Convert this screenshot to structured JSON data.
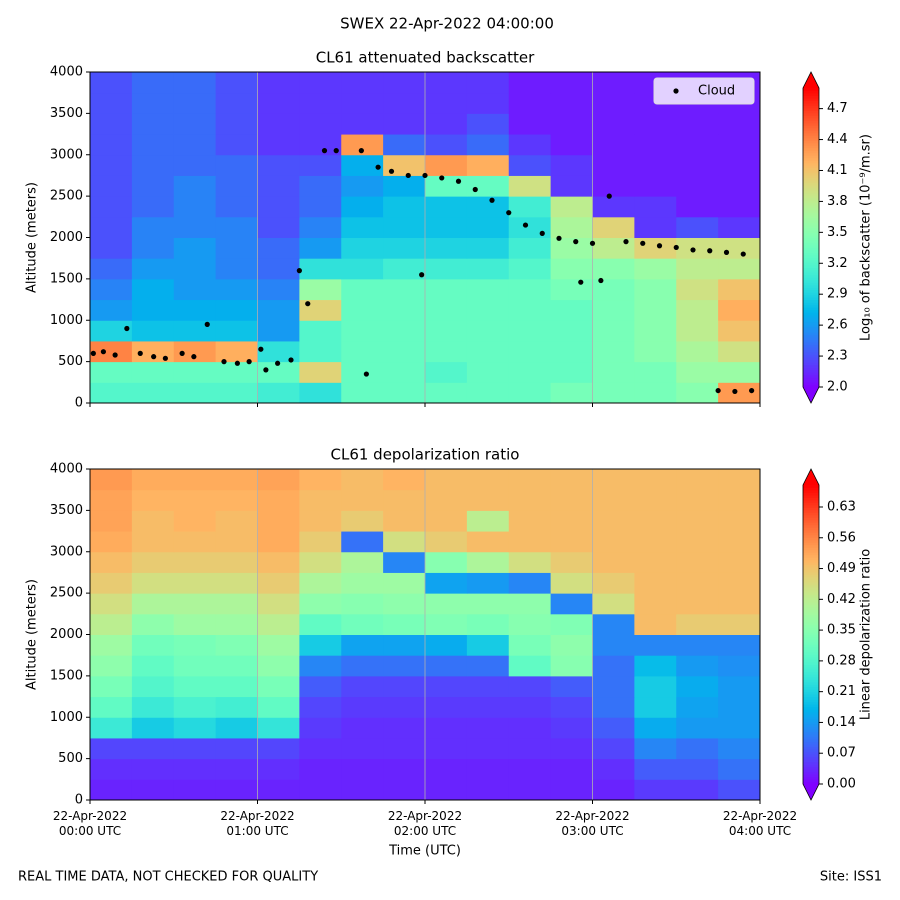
{
  "suptitle": "SWEX 22-Apr-2022 04:00:00",
  "footer_left": "REAL TIME DATA, NOT CHECKED FOR QUALITY",
  "footer_right": "Site: ISS1",
  "chart_data": [
    {
      "type": "heatmap",
      "title": "CL61 attenuated backscatter",
      "ylabel": "Altitude (meters)",
      "colormap": "rainbow",
      "clim": [
        2.0,
        4.9
      ],
      "colorbar_label": "Log₁₀ of backscatter (10⁻⁹/m.sr)",
      "colorbar_ticks": [
        {
          "value": 2.0,
          "label": "2.0"
        },
        {
          "value": 2.3,
          "label": "2.3"
        },
        {
          "value": 2.6,
          "label": "2.6"
        },
        {
          "value": 2.9,
          "label": "2.9"
        },
        {
          "value": 3.2,
          "label": "3.2"
        },
        {
          "value": 3.5,
          "label": "3.5"
        },
        {
          "value": 3.8,
          "label": "3.8"
        },
        {
          "value": 4.1,
          "label": "4.1"
        },
        {
          "value": 4.4,
          "label": "4.4"
        },
        {
          "value": 4.7,
          "label": "4.7"
        }
      ],
      "xlim": [
        0,
        4
      ],
      "ylim": [
        0,
        4000
      ],
      "yticks": [
        0,
        500,
        1000,
        1500,
        2000,
        2500,
        3000,
        3500,
        4000
      ],
      "grid": "x",
      "x_bins": [
        0,
        0.25,
        0.5,
        0.75,
        1,
        1.25,
        1.5,
        1.75,
        2,
        2.25,
        2.5,
        2.75,
        3,
        3.25,
        3.5,
        3.75,
        4
      ],
      "y_bins": [
        0,
        250,
        500,
        750,
        1000,
        1250,
        1500,
        1750,
        2000,
        2250,
        2500,
        2750,
        3000,
        3250,
        3500,
        3750,
        4000
      ],
      "z": [
        [
          3.2,
          3.2,
          3.2,
          3.2,
          3.1,
          3.0,
          3.3,
          3.3,
          3.3,
          3.3,
          3.3,
          3.4,
          3.4,
          3.4,
          3.5,
          4.3
        ],
        [
          3.3,
          3.3,
          3.3,
          3.3,
          3.3,
          4.0,
          3.3,
          3.3,
          3.2,
          3.3,
          3.3,
          3.3,
          3.4,
          3.4,
          3.6,
          3.6
        ],
        [
          4.4,
          4.2,
          4.3,
          4.2,
          3.0,
          3.2,
          3.3,
          3.3,
          3.3,
          3.3,
          3.3,
          3.3,
          3.4,
          3.5,
          3.7,
          3.9
        ],
        [
          2.9,
          2.8,
          2.8,
          2.8,
          2.6,
          3.2,
          3.3,
          3.3,
          3.3,
          3.3,
          3.3,
          3.3,
          3.4,
          3.5,
          3.8,
          4.1
        ],
        [
          2.6,
          2.7,
          2.7,
          2.7,
          2.6,
          4.0,
          3.3,
          3.3,
          3.3,
          3.3,
          3.3,
          3.3,
          3.4,
          3.5,
          3.8,
          4.2
        ],
        [
          2.5,
          2.7,
          2.6,
          2.6,
          2.5,
          3.6,
          3.3,
          3.3,
          3.3,
          3.3,
          3.3,
          3.4,
          3.4,
          3.5,
          3.9,
          4.1
        ],
        [
          2.4,
          2.6,
          2.6,
          2.5,
          2.4,
          3.0,
          3.0,
          3.1,
          3.1,
          3.1,
          3.2,
          3.5,
          3.5,
          3.6,
          3.8,
          3.8
        ],
        [
          2.3,
          2.5,
          2.6,
          2.5,
          2.4,
          2.6,
          2.9,
          2.9,
          2.9,
          2.9,
          3.1,
          3.6,
          3.8,
          4.0,
          3.9,
          3.9
        ],
        [
          2.3,
          2.5,
          2.5,
          2.5,
          2.3,
          2.5,
          2.8,
          2.8,
          2.8,
          2.8,
          3.0,
          3.7,
          4.0,
          2.2,
          2.3,
          2.2
        ],
        [
          2.3,
          2.4,
          2.5,
          2.4,
          2.3,
          2.4,
          2.7,
          2.8,
          2.8,
          2.8,
          3.1,
          3.8,
          2.2,
          2.2,
          2.1,
          2.1
        ],
        [
          2.3,
          2.4,
          2.5,
          2.4,
          2.3,
          2.4,
          2.6,
          2.7,
          3.3,
          3.3,
          3.9,
          2.2,
          2.1,
          2.1,
          2.1,
          2.1
        ],
        [
          2.3,
          2.4,
          2.4,
          2.4,
          2.3,
          2.3,
          2.7,
          4.1,
          4.3,
          4.2,
          2.3,
          2.2,
          2.1,
          2.1,
          2.1,
          2.1
        ],
        [
          2.3,
          2.4,
          2.4,
          2.3,
          2.2,
          2.2,
          4.3,
          2.4,
          2.3,
          2.4,
          2.2,
          2.1,
          2.1,
          2.1,
          2.1,
          2.1
        ],
        [
          2.3,
          2.4,
          2.4,
          2.3,
          2.2,
          2.2,
          2.2,
          2.2,
          2.2,
          2.3,
          2.1,
          2.1,
          2.1,
          2.1,
          2.1,
          2.1
        ],
        [
          2.3,
          2.4,
          2.4,
          2.3,
          2.2,
          2.2,
          2.2,
          2.2,
          2.2,
          2.2,
          2.1,
          2.1,
          2.1,
          2.1,
          2.1,
          2.1
        ],
        [
          2.3,
          2.4,
          2.4,
          2.3,
          2.2,
          2.2,
          2.2,
          2.2,
          2.2,
          2.2,
          2.1,
          2.1,
          2.1,
          2.1,
          2.1,
          2.1
        ]
      ],
      "legend": "upper right",
      "series": [
        {
          "name": "Cloud",
          "type": "scatter",
          "color": "#000000",
          "x": [
            0.02,
            0.08,
            0.15,
            0.22,
            0.3,
            0.38,
            0.45,
            0.55,
            0.62,
            0.7,
            0.8,
            0.88,
            0.95,
            1.02,
            1.05,
            1.12,
            1.2,
            1.25,
            1.3,
            1.4,
            1.47,
            1.62,
            1.65,
            1.72,
            1.8,
            1.9,
            1.98,
            2.0,
            2.1,
            2.2,
            2.3,
            2.4,
            2.5,
            2.6,
            2.7,
            2.8,
            2.9,
            2.93,
            3.0,
            3.05,
            3.1,
            3.2,
            3.3,
            3.4,
            3.5,
            3.6,
            3.7,
            3.75,
            3.8,
            3.85,
            3.9,
            3.95
          ],
          "values": [
            600,
            620,
            580,
            900,
            600,
            560,
            540,
            600,
            560,
            950,
            500,
            480,
            500,
            650,
            400,
            480,
            520,
            1600,
            1200,
            3050,
            3050,
            3050,
            350,
            2850,
            2800,
            2750,
            1550,
            2750,
            2720,
            2680,
            2580,
            2450,
            2300,
            2150,
            2050,
            1990,
            1950,
            1460,
            1930,
            1480,
            2500,
            1950,
            1930,
            1900,
            1880,
            1850,
            1840,
            150,
            1820,
            140,
            1800,
            150
          ]
        }
      ]
    },
    {
      "type": "heatmap",
      "title": "CL61 depolarization ratio",
      "ylabel": "Altitude (meters)",
      "xlabel": "Time (UTC)",
      "colormap": "rainbow",
      "clim": [
        0,
        0.68
      ],
      "colorbar_label": "Linear depolarization ratio",
      "colorbar_ticks": [
        {
          "value": 0,
          "label": "0.00"
        },
        {
          "value": 0.07,
          "label": "0.07"
        },
        {
          "value": 0.14,
          "label": "0.14"
        },
        {
          "value": 0.21,
          "label": "0.21"
        },
        {
          "value": 0.28,
          "label": "0.28"
        },
        {
          "value": 0.35,
          "label": "0.35"
        },
        {
          "value": 0.42,
          "label": "0.42"
        },
        {
          "value": 0.49,
          "label": "0.49"
        },
        {
          "value": 0.56,
          "label": "0.56"
        },
        {
          "value": 0.63,
          "label": "0.63"
        }
      ],
      "xlim": [
        0,
        4
      ],
      "ylim": [
        0,
        4000
      ],
      "yticks": [
        0,
        500,
        1000,
        1500,
        2000,
        2500,
        3000,
        3500,
        4000
      ],
      "grid": "x",
      "xticks": [
        {
          "value": 0,
          "label": "22-Apr-2022\n00:00 UTC"
        },
        {
          "value": 1,
          "label": "22-Apr-2022\n01:00 UTC"
        },
        {
          "value": 2,
          "label": "22-Apr-2022\n02:00 UTC"
        },
        {
          "value": 3,
          "label": "22-Apr-2022\n03:00 UTC"
        },
        {
          "value": 4,
          "label": "22-Apr-2022\n04:00 UTC"
        }
      ],
      "x_bins": [
        0,
        0.25,
        0.5,
        0.75,
        1,
        1.25,
        1.5,
        1.75,
        2,
        2.25,
        2.5,
        2.75,
        3,
        3.25,
        3.5,
        3.75,
        4
      ],
      "y_bins": [
        0,
        250,
        500,
        750,
        1000,
        1250,
        1500,
        1750,
        2000,
        2250,
        2500,
        2750,
        3000,
        3250,
        3500,
        3750,
        4000
      ],
      "z": [
        [
          0.03,
          0.03,
          0.03,
          0.03,
          0.03,
          0.03,
          0.03,
          0.03,
          0.03,
          0.03,
          0.03,
          0.03,
          0.03,
          0.05,
          0.05,
          0.07
        ],
        [
          0.04,
          0.04,
          0.04,
          0.04,
          0.04,
          0.03,
          0.03,
          0.03,
          0.03,
          0.03,
          0.03,
          0.03,
          0.04,
          0.08,
          0.08,
          0.1
        ],
        [
          0.06,
          0.06,
          0.06,
          0.06,
          0.06,
          0.04,
          0.04,
          0.04,
          0.04,
          0.04,
          0.04,
          0.04,
          0.06,
          0.12,
          0.1,
          0.12
        ],
        [
          0.25,
          0.2,
          0.22,
          0.2,
          0.24,
          0.05,
          0.04,
          0.04,
          0.04,
          0.04,
          0.04,
          0.05,
          0.08,
          0.16,
          0.14,
          0.14
        ],
        [
          0.3,
          0.25,
          0.27,
          0.26,
          0.3,
          0.06,
          0.05,
          0.05,
          0.05,
          0.05,
          0.05,
          0.06,
          0.1,
          0.2,
          0.15,
          0.14
        ],
        [
          0.33,
          0.28,
          0.3,
          0.3,
          0.33,
          0.08,
          0.06,
          0.06,
          0.06,
          0.06,
          0.06,
          0.08,
          0.1,
          0.2,
          0.16,
          0.14
        ],
        [
          0.36,
          0.3,
          0.32,
          0.32,
          0.36,
          0.12,
          0.1,
          0.1,
          0.1,
          0.1,
          0.3,
          0.35,
          0.1,
          0.18,
          0.14,
          0.13
        ],
        [
          0.38,
          0.32,
          0.33,
          0.34,
          0.38,
          0.2,
          0.15,
          0.15,
          0.16,
          0.2,
          0.33,
          0.36,
          0.12,
          0.12,
          0.12,
          0.12
        ],
        [
          0.42,
          0.36,
          0.38,
          0.38,
          0.42,
          0.3,
          0.32,
          0.33,
          0.34,
          0.33,
          0.35,
          0.34,
          0.12,
          0.5,
          0.48,
          0.48
        ],
        [
          0.45,
          0.4,
          0.4,
          0.4,
          0.45,
          0.36,
          0.35,
          0.36,
          0.36,
          0.36,
          0.36,
          0.12,
          0.45,
          0.5,
          0.5,
          0.5
        ],
        [
          0.48,
          0.45,
          0.45,
          0.45,
          0.48,
          0.4,
          0.38,
          0.38,
          0.15,
          0.14,
          0.12,
          0.45,
          0.48,
          0.5,
          0.5,
          0.5
        ],
        [
          0.5,
          0.48,
          0.48,
          0.48,
          0.5,
          0.45,
          0.4,
          0.12,
          0.35,
          0.4,
          0.45,
          0.48,
          0.5,
          0.5,
          0.5,
          0.5
        ],
        [
          0.52,
          0.5,
          0.5,
          0.5,
          0.52,
          0.48,
          0.1,
          0.45,
          0.48,
          0.5,
          0.5,
          0.5,
          0.5,
          0.5,
          0.5,
          0.5
        ],
        [
          0.53,
          0.5,
          0.51,
          0.5,
          0.52,
          0.5,
          0.48,
          0.5,
          0.5,
          0.42,
          0.5,
          0.5,
          0.5,
          0.5,
          0.5,
          0.5
        ],
        [
          0.53,
          0.51,
          0.51,
          0.51,
          0.52,
          0.5,
          0.5,
          0.5,
          0.5,
          0.5,
          0.5,
          0.5,
          0.5,
          0.5,
          0.5,
          0.5
        ],
        [
          0.54,
          0.52,
          0.52,
          0.52,
          0.53,
          0.51,
          0.5,
          0.51,
          0.5,
          0.5,
          0.5,
          0.5,
          0.5,
          0.5,
          0.5,
          0.5
        ]
      ]
    }
  ]
}
